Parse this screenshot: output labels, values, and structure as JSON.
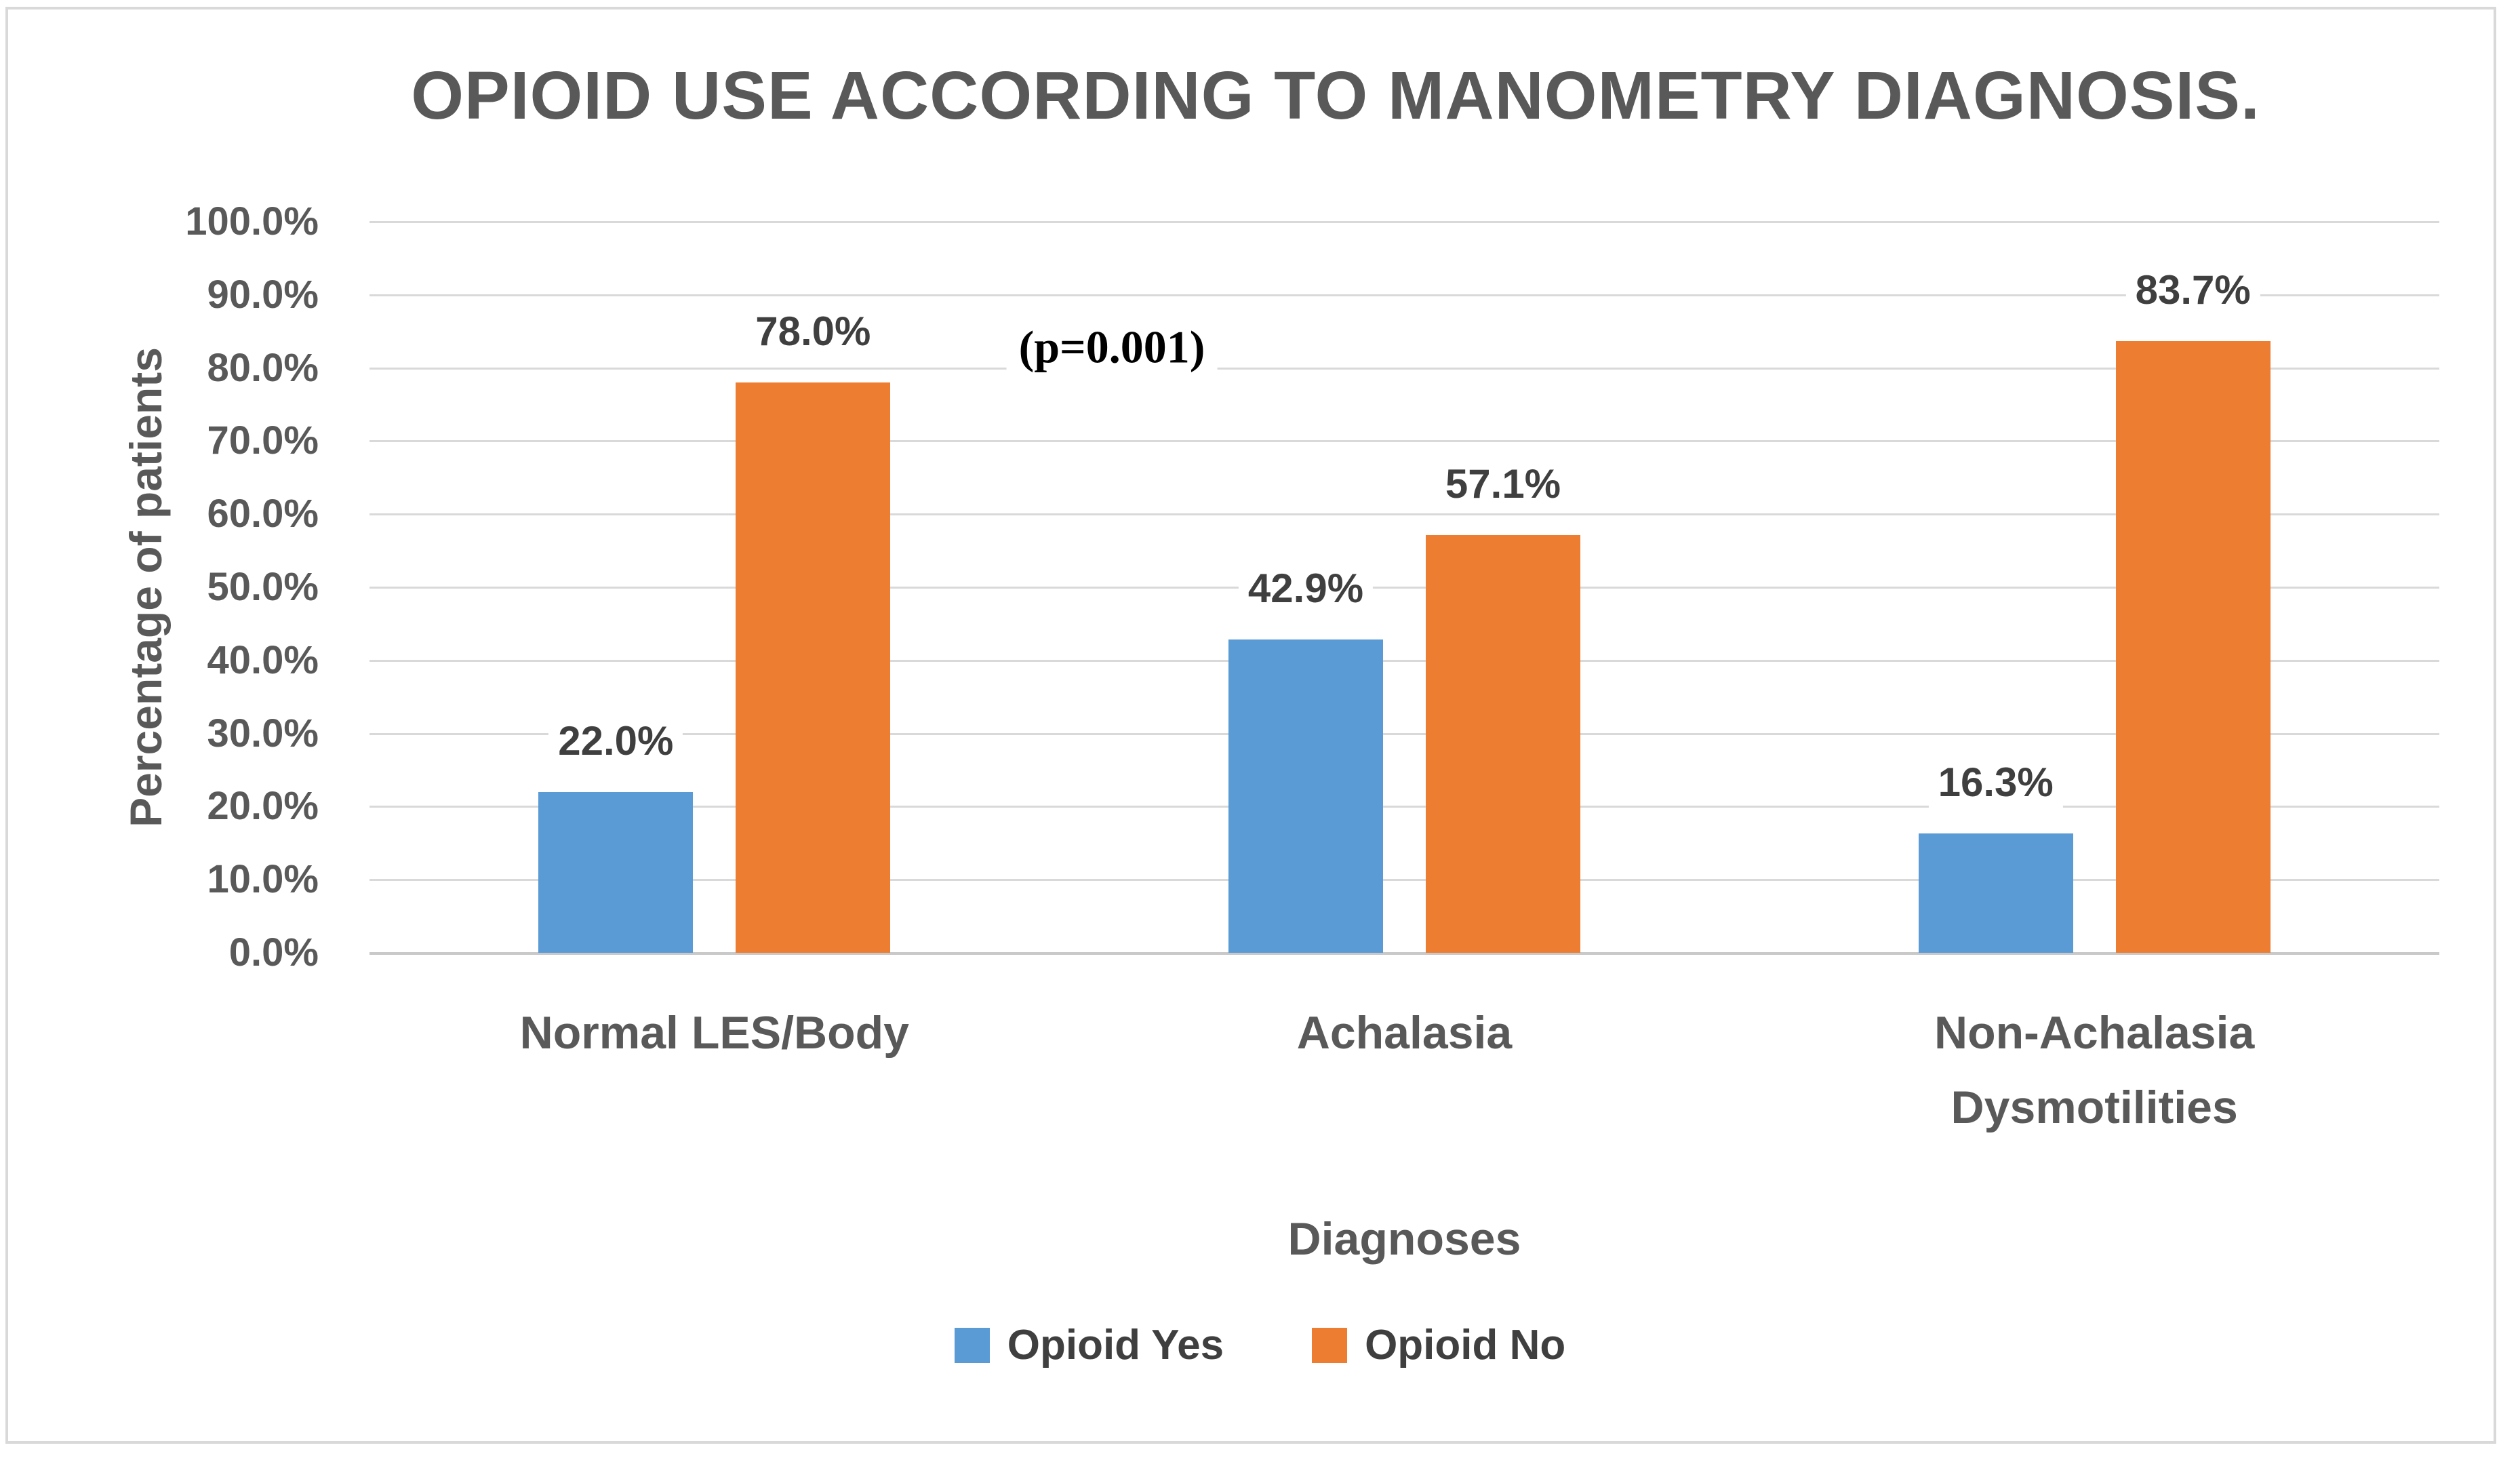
{
  "title": "OPIOID USE ACCORDING TO MANOMETRY DIAGNOSIS.",
  "annotation": "(p=0.001)",
  "colors": {
    "opioid_yes": "#5B9BD5",
    "opioid_no": "#ED7D31",
    "gridline": "#D9D9D9",
    "title_text": "#595959",
    "label_text": "#3F3F3F",
    "frame_border": "#D9D9D9"
  },
  "legend": [
    {
      "label": "Opioid Yes",
      "color": "#5B9BD5"
    },
    {
      "label": "Opioid No",
      "color": "#ED7D31"
    }
  ],
  "chart_data": {
    "type": "bar",
    "title": "OPIOID USE ACCORDING TO MANOMETRY DIAGNOSIS.",
    "categories": [
      "Normal LES/Body",
      "Achalasia",
      "Non-Achalasia Dysmotilities"
    ],
    "series": [
      {
        "name": "Opioid Yes",
        "color": "#5B9BD5",
        "values": [
          22.0,
          42.9,
          16.3
        ]
      },
      {
        "name": "Opioid No",
        "color": "#ED7D31",
        "values": [
          78.0,
          57.1,
          83.7
        ]
      }
    ],
    "data_labels": [
      [
        "22.0%",
        "42.9%",
        "16.3%"
      ],
      [
        "78.0%",
        "57.1%",
        "83.7%"
      ]
    ],
    "xlabel": "Diagnoses",
    "ylabel": "Percentage of patients",
    "ylim": [
      0,
      100
    ],
    "ytick_step": 10,
    "yticks": [
      "100.0%",
      "90.0%",
      "80.0%",
      "70.0%",
      "60.0%",
      "50.0%",
      "40.0%",
      "30.0%",
      "20.0%",
      "10.0%",
      "0.0%"
    ],
    "annotation": "(p=0.001)",
    "grid": true,
    "legend_position": "bottom"
  }
}
